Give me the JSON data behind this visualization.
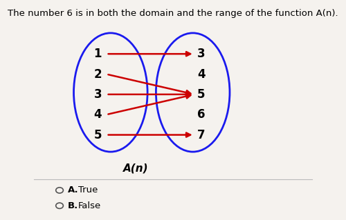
{
  "title": "The number 6 is in both the domain and the range of the function A(n).",
  "title_fontsize": 9.5,
  "bg_color": "#f5f2ee",
  "domain_values": [
    "1",
    "2",
    "3",
    "4",
    "5"
  ],
  "range_values": [
    "3",
    "4",
    "5",
    "6",
    "7"
  ],
  "arrows": [
    [
      0,
      0
    ],
    [
      1,
      2
    ],
    [
      2,
      2
    ],
    [
      3,
      2
    ],
    [
      4,
      4
    ]
  ],
  "arrow_color": "#cc0000",
  "ellipse_color": "#1a1aee",
  "ellipse_lw": 2.0,
  "func_label": "A(n)",
  "func_label_fontsize": 11,
  "options": [
    [
      "A.",
      "True"
    ],
    [
      "B.",
      "False"
    ]
  ],
  "option_fontsize": 9.5,
  "label_fontsize": 12
}
